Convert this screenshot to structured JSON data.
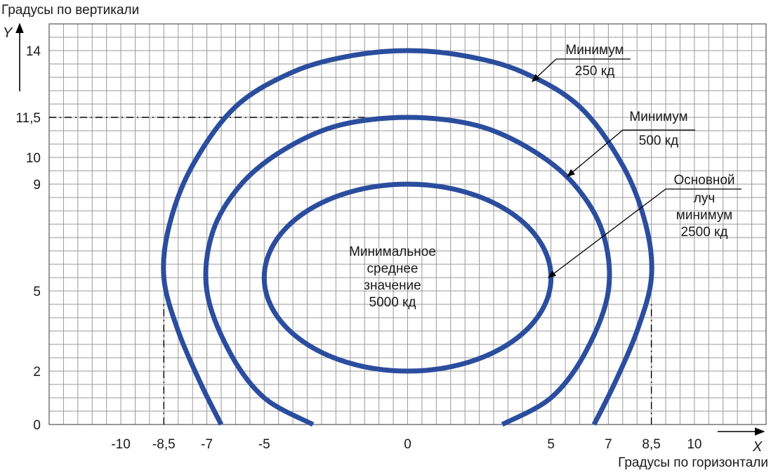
{
  "chart_data": {
    "type": "line",
    "xlabel": "Градусы по горизонтали",
    "ylabel": "Градусы по вертикали",
    "x_axis_letter": "X",
    "y_axis_letter": "Y",
    "xlim": [
      -12.5,
      12.5
    ],
    "ylim": [
      0,
      15
    ],
    "grid": true,
    "x_ticks": [
      {
        "value": -10,
        "label": "-10"
      },
      {
        "value": -8.5,
        "label": "-8,5"
      },
      {
        "value": -7,
        "label": "-7"
      },
      {
        "value": -5,
        "label": "-5"
      },
      {
        "value": 0,
        "label": "0"
      },
      {
        "value": 5,
        "label": "5"
      },
      {
        "value": 7,
        "label": "7"
      },
      {
        "value": 8.5,
        "label": "8,5"
      },
      {
        "value": 10,
        "label": "10"
      }
    ],
    "y_ticks": [
      {
        "value": 0,
        "label": "0"
      },
      {
        "value": 2,
        "label": "2"
      },
      {
        "value": 5,
        "label": "5"
      },
      {
        "value": 9,
        "label": "9"
      },
      {
        "value": 10,
        "label": "10"
      },
      {
        "value": 11.5,
        "label": "11,5"
      },
      {
        "value": 14,
        "label": "14"
      }
    ],
    "series": [
      {
        "id": "outer",
        "label": "Минимум 250 кд",
        "x": [
          -6.5,
          -7.2,
          -8.0,
          -8.5,
          -8.3,
          -7.5,
          -6.0,
          -4.0,
          -2.0,
          0,
          2.0,
          4.0,
          6.0,
          7.5,
          8.3,
          8.5,
          8.0,
          7.2,
          6.5
        ],
        "y": [
          0,
          1.5,
          3.5,
          5.5,
          7.5,
          9.7,
          11.9,
          13.2,
          13.8,
          14,
          13.8,
          13.2,
          11.9,
          9.7,
          7.5,
          5.5,
          3.5,
          1.5,
          0
        ],
        "open_bottom": true
      },
      {
        "id": "middle",
        "label": "Минимум 500 кд",
        "x": [
          -3.3,
          -5.0,
          -6.2,
          -7.0,
          -6.8,
          -5.8,
          -4.3,
          -2.4,
          0,
          2.4,
          4.3,
          5.8,
          6.8,
          7.0,
          6.2,
          5.0,
          3.3
        ],
        "y": [
          0,
          1.0,
          2.7,
          5.0,
          7.2,
          9.0,
          10.3,
          11.2,
          11.5,
          11.2,
          10.3,
          9.0,
          7.2,
          5.0,
          2.7,
          1.0,
          0
        ],
        "open_bottom": true
      },
      {
        "id": "inner",
        "label": "Основной луч минимум 2500 кд",
        "center": [
          0,
          5.5
        ],
        "rx": 5,
        "ry_up": 3.5,
        "ry_down": 3.5,
        "open_bottom": false
      }
    ],
    "guides": [
      {
        "from": [
          -12.5,
          11.5
        ],
        "to": [
          -1.5,
          11.5
        ]
      },
      {
        "from": [
          -8.5,
          0
        ],
        "to": [
          -8.5,
          4.5
        ]
      },
      {
        "from": [
          8.5,
          0
        ],
        "to": [
          8.5,
          4.5
        ]
      }
    ],
    "annotations": [
      {
        "id": "ann-250",
        "lines": [
          "Минимум",
          "250 кд"
        ],
        "points_to": [
          4.5,
          13.1
        ]
      },
      {
        "id": "ann-500",
        "lines": [
          "Минимум",
          "500 кд"
        ],
        "points_to": [
          5.7,
          9.3
        ]
      },
      {
        "id": "ann-main",
        "lines": [
          "Основной",
          "луч",
          "минимум",
          "2500 кд"
        ],
        "points_to": [
          5.0,
          5.6
        ]
      },
      {
        "id": "ann-center",
        "lines": [
          "Минимальное",
          "среднее",
          "значение",
          "5000 кд"
        ],
        "points_to": null
      }
    ]
  }
}
